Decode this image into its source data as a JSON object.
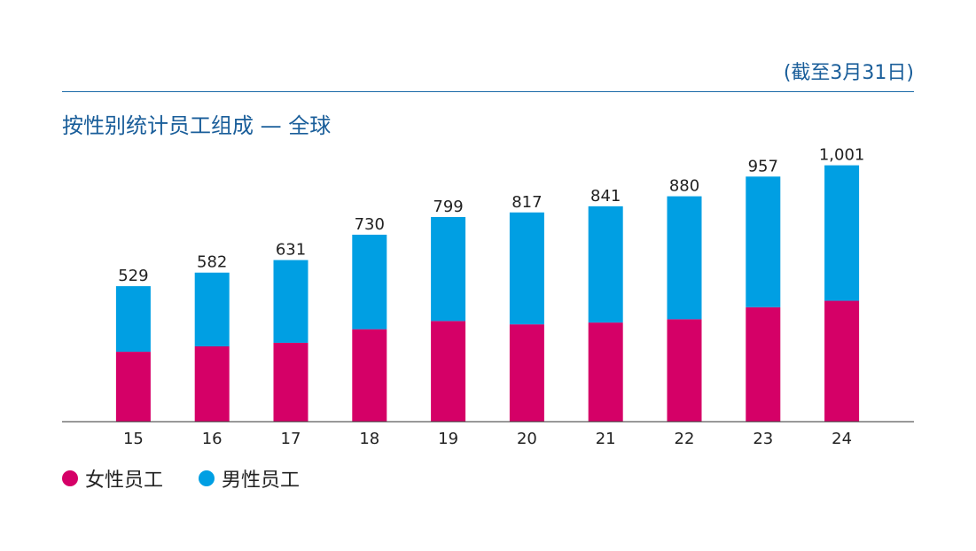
{
  "note": "(截至3月31日)",
  "colors": {
    "female": "#d50067",
    "male": "#009fe3",
    "title": "#1a5e9a"
  },
  "chart_data": {
    "type": "bar",
    "stacked": true,
    "title": "按性别统计员工组成 — 全球",
    "categories": [
      "15",
      "16",
      "17",
      "18",
      "19",
      "20",
      "21",
      "22",
      "23",
      "24"
    ],
    "series": [
      {
        "name": "女性员工",
        "values": [
          273,
          294,
          308,
          361,
          393,
          380,
          387,
          400,
          447,
          472
        ]
      },
      {
        "name": "男性员工",
        "values": [
          256,
          288,
          323,
          369,
          406,
          437,
          454,
          480,
          510,
          529
        ]
      }
    ],
    "totals": [
      "529",
      "582",
      "631",
      "730",
      "799",
      "817",
      "841",
      "880",
      "957",
      "1,001"
    ],
    "ylim": [
      0,
      1010
    ],
    "grid": false,
    "legend_position": "bottom-left"
  }
}
